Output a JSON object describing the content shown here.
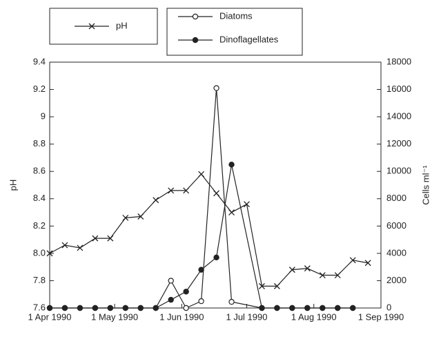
{
  "chart_data": {
    "type": "line",
    "y_label": "pH",
    "y2_label": "Cells ml⁻¹",
    "xlim": [
      "1990-04-01",
      "1990-09-01"
    ],
    "xticks": [
      {
        "value": "1990-04-01",
        "label": "1 Apr 1990"
      },
      {
        "value": "1990-05-01",
        "label": "1 May 1990"
      },
      {
        "value": "1990-06-01",
        "label": "1 Jun 1990"
      },
      {
        "value": "1990-07-01",
        "label": "1 Jul 1990"
      },
      {
        "value": "1990-08-01",
        "label": "1 Aug 1990"
      },
      {
        "value": "1990-09-01",
        "label": "1 Sep 1990"
      }
    ],
    "ylim": [
      7.6,
      9.4
    ],
    "yticks": [
      7.6,
      7.8,
      {
        "value": 8,
        "label": "8.0"
      },
      8.2,
      8.4,
      8.6,
      8.8,
      9,
      9.2,
      9.4
    ],
    "y2lim": [
      0,
      18000
    ],
    "y2ticks": [
      0,
      2000,
      4000,
      6000,
      8000,
      10000,
      12000,
      14000,
      16000,
      18000
    ],
    "series": [
      {
        "name": "pH",
        "color": "#222",
        "marker": "x",
        "x": [
          "1990-04-01",
          "1990-04-08",
          "1990-04-15",
          "1990-04-22",
          "1990-04-29",
          "1990-05-06",
          "1990-05-13",
          "1990-05-20",
          "1990-05-27",
          "1990-06-03",
          "1990-06-10",
          "1990-06-17",
          "1990-06-24",
          "1990-07-01",
          "1990-07-08",
          "1990-07-15",
          "1990-07-22",
          "1990-07-29",
          "1990-08-05",
          "1990-08-12",
          "1990-08-19",
          "1990-08-26"
        ],
        "values": [
          8.0,
          8.06,
          8.04,
          8.11,
          8.11,
          8.26,
          8.27,
          8.39,
          8.46,
          8.46,
          8.58,
          8.44,
          8.3,
          8.36,
          7.76,
          7.76,
          7.88,
          7.89,
          7.84,
          7.84,
          7.95,
          7.93
        ]
      },
      {
        "name": "Diatoms",
        "color": "#222",
        "marker": "open-circle",
        "axis": "y2",
        "x": [
          "1990-04-01",
          "1990-04-08",
          "1990-04-15",
          "1990-04-22",
          "1990-04-29",
          "1990-05-06",
          "1990-05-13",
          "1990-05-20",
          "1990-05-27",
          "1990-06-03",
          "1990-06-10",
          "1990-06-17",
          "1990-06-24",
          "1990-07-08",
          "1990-07-15",
          "1990-07-22",
          "1990-07-29",
          "1990-08-05",
          "1990-08-12",
          "1990-08-19"
        ],
        "values": [
          0,
          0,
          0,
          0,
          0,
          0,
          0,
          0,
          2000,
          0,
          500,
          16100,
          450,
          0,
          0,
          0,
          0,
          0,
          0,
          0
        ]
      },
      {
        "name": "Dinoflagellates",
        "color": "#222",
        "marker": "filled-circle",
        "axis": "y2",
        "x": [
          "1990-04-01",
          "1990-04-08",
          "1990-04-15",
          "1990-04-22",
          "1990-04-29",
          "1990-05-06",
          "1990-05-13",
          "1990-05-20",
          "1990-05-27",
          "1990-06-03",
          "1990-06-10",
          "1990-06-17",
          "1990-06-24",
          "1990-07-08",
          "1990-07-15",
          "1990-07-22",
          "1990-07-29",
          "1990-08-05",
          "1990-08-12",
          "1990-08-19"
        ],
        "values": [
          0,
          0,
          0,
          0,
          0,
          0,
          0,
          0,
          600,
          1200,
          2800,
          3700,
          10500,
          0,
          0,
          0,
          0,
          0,
          0,
          0
        ]
      }
    ]
  }
}
